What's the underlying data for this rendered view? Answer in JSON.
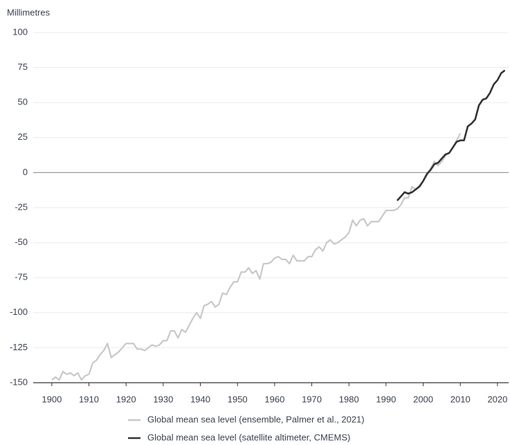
{
  "chart_data": {
    "type": "line",
    "y_label": "Millimetres",
    "xlim": [
      1895,
      2023
    ],
    "xticks": [
      1900,
      1910,
      1920,
      1930,
      1940,
      1950,
      1960,
      1970,
      1980,
      1990,
      2000,
      2010,
      2020
    ],
    "ylim": [
      -150,
      100
    ],
    "yticks": [
      -150,
      -125,
      -100,
      -75,
      -50,
      -25,
      0,
      25,
      50,
      75,
      100
    ],
    "grid": true,
    "legend": "bottom",
    "series": [
      {
        "name": "Global mean sea level (ensemble, Palmer et al., 2021)",
        "color": "#c8c8c8",
        "x": [
          1900,
          1901,
          1902,
          1903,
          1904,
          1905,
          1906,
          1907,
          1908,
          1909,
          1910,
          1911,
          1912,
          1913,
          1914,
          1915,
          1916,
          1917,
          1918,
          1919,
          1920,
          1921,
          1922,
          1923,
          1924,
          1925,
          1926,
          1927,
          1928,
          1929,
          1930,
          1931,
          1932,
          1933,
          1934,
          1935,
          1936,
          1937,
          1938,
          1939,
          1940,
          1941,
          1942,
          1943,
          1944,
          1945,
          1946,
          1947,
          1948,
          1949,
          1950,
          1951,
          1952,
          1953,
          1954,
          1955,
          1956,
          1957,
          1958,
          1959,
          1960,
          1961,
          1962,
          1963,
          1964,
          1965,
          1966,
          1967,
          1968,
          1969,
          1970,
          1971,
          1972,
          1973,
          1974,
          1975,
          1976,
          1977,
          1978,
          1979,
          1980,
          1981,
          1982,
          1983,
          1984,
          1985,
          1986,
          1987,
          1988,
          1989,
          1990,
          1991,
          1992,
          1993,
          1994,
          1995,
          1996,
          1997,
          1998,
          1999,
          2000,
          2001,
          2002,
          2003,
          2004,
          2005,
          2006,
          2007,
          2008,
          2009,
          2010
        ],
        "values": [
          -148,
          -146,
          -148,
          -142,
          -144,
          -143,
          -145,
          -143,
          -148,
          -145,
          -144,
          -136,
          -134,
          -130,
          -127,
          -122,
          -132,
          -130,
          -128,
          -125,
          -122,
          -122,
          -122,
          -126,
          -126,
          -127,
          -125,
          -123,
          -124,
          -123,
          -120,
          -120,
          -113,
          -113,
          -118,
          -112,
          -114,
          -109,
          -104,
          -100,
          -104,
          -95,
          -94,
          -92,
          -96,
          -94,
          -86,
          -87,
          -82,
          -78,
          -78,
          -71,
          -71,
          -68,
          -72,
          -70,
          -76,
          -65,
          -65,
          -64,
          -61,
          -60,
          -62,
          -62,
          -65,
          -59,
          -63,
          -63,
          -63,
          -60,
          -60,
          -55,
          -53,
          -56,
          -50,
          -48,
          -51,
          -50,
          -48,
          -46,
          -43,
          -34,
          -38,
          -34,
          -33,
          -38,
          -35,
          -35,
          -35,
          -31,
          -27,
          -27,
          -27,
          -26,
          -23,
          -18,
          -18,
          -10,
          -12,
          -9,
          -6,
          -2,
          3,
          8,
          5,
          8,
          12,
          14,
          18,
          23,
          28
        ]
      },
      {
        "name": "Global mean sea level (satellite altimeter, CMEMS)",
        "color": "#333333",
        "x": [
          1993,
          1994,
          1995,
          1996,
          1997,
          1998,
          1999,
          2000,
          2001,
          2002,
          2003,
          2004,
          2005,
          2006,
          2007,
          2008,
          2009,
          2010,
          2011,
          2012,
          2013,
          2014,
          2015,
          2016,
          2017,
          2018,
          2019,
          2020,
          2021,
          2022
        ],
        "values": [
          -20,
          -17,
          -14,
          -15,
          -14,
          -12,
          -10,
          -6,
          -1,
          2,
          6,
          7,
          10,
          13,
          14,
          18,
          22,
          23,
          23,
          33,
          35,
          38,
          48,
          52,
          53,
          57,
          63,
          66,
          71,
          73
        ]
      }
    ]
  }
}
